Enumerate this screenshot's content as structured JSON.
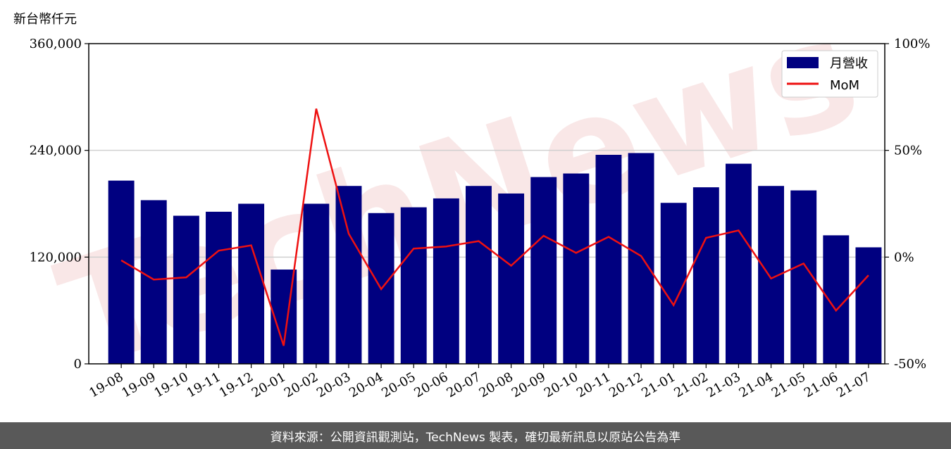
{
  "chart_data": {
    "type": "bar",
    "unit_label": "新台幣仟元",
    "categories": [
      "19-08",
      "19-09",
      "19-10",
      "19-11",
      "19-12",
      "20-01",
      "20-02",
      "20-03",
      "20-04",
      "20-05",
      "20-06",
      "20-07",
      "20-08",
      "20-09",
      "20-10",
      "20-11",
      "20-12",
      "21-01",
      "21-02",
      "21-03",
      "21-04",
      "21-05",
      "21-06",
      "21-07"
    ],
    "series": [
      {
        "name": "月營收",
        "axis": "left",
        "color": "#000080",
        "values": [
          206000,
          184000,
          166500,
          171000,
          180000,
          106000,
          180000,
          200000,
          169500,
          176000,
          186000,
          200000,
          191500,
          210000,
          214000,
          235000,
          237000,
          181000,
          198500,
          225000,
          200000,
          195000,
          144500,
          131000
        ]
      },
      {
        "name": "MoM",
        "axis": "right",
        "type": "line",
        "color": "#ee1111",
        "values": [
          -1.5,
          -10.5,
          -9.5,
          3.0,
          5.5,
          -41.5,
          69.5,
          11.0,
          -15.0,
          4.0,
          5.0,
          7.5,
          -4.0,
          10.0,
          2.0,
          9.5,
          0.5,
          -22.5,
          9.0,
          12.5,
          -10.0,
          -3.0,
          -25.0,
          -8.5
        ]
      }
    ],
    "ylim_left": [
      0,
      360000
    ],
    "ylim_right": [
      -50,
      100
    ],
    "yticks_left": [
      {
        "value": 0,
        "label": "0"
      },
      {
        "value": 120000,
        "label": "120,000"
      },
      {
        "value": 240000,
        "label": "240,000"
      },
      {
        "value": 360000,
        "label": "360,000"
      }
    ],
    "yticks_right": [
      {
        "value": -50,
        "label": "-50%"
      },
      {
        "value": 0,
        "label": "0%"
      },
      {
        "value": 50,
        "label": "50%"
      },
      {
        "value": 100,
        "label": "100%"
      }
    ],
    "grid": true,
    "legend": {
      "position": "top-right",
      "items": [
        "月營收",
        "MoM"
      ]
    }
  },
  "watermark": "TechNews",
  "footer": {
    "text": "資料來源：公開資訊觀測站，TechNews 製表，確切最新訊息以原站公告為準"
  }
}
